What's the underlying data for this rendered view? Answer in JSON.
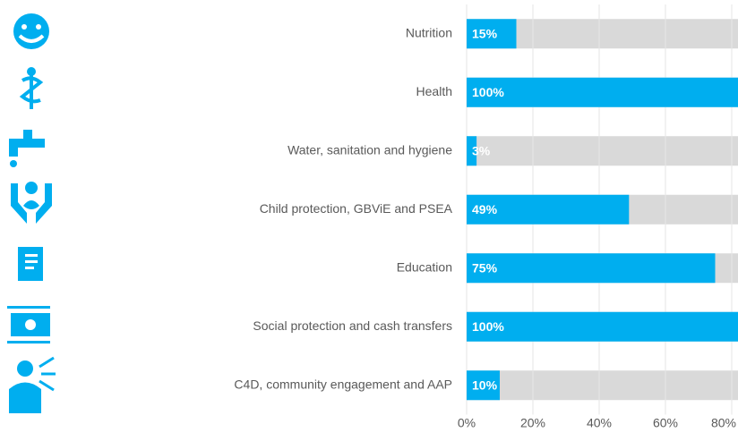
{
  "chart_data": {
    "type": "bar",
    "orientation": "horizontal",
    "categories": [
      "Nutrition",
      "Health",
      "Water, sanitation and hygiene",
      "Child protection, GBViE and PSEA",
      "Education",
      "Social protection and cash transfers",
      "C4D, community engagement and AAP"
    ],
    "values": [
      15,
      100,
      3,
      49,
      75,
      100,
      10
    ],
    "value_labels": [
      "15%",
      "100%",
      "3%",
      "49%",
      "75%",
      "100%",
      "10%"
    ],
    "color": "#00aeef",
    "track_color": "#d9d9d9",
    "xlim": [
      0,
      100
    ],
    "xticks": [
      {
        "value": 0,
        "label": "0%"
      },
      {
        "value": 20,
        "label": "20%"
      },
      {
        "value": 40,
        "label": "40%"
      },
      {
        "value": 60,
        "label": "60%"
      },
      {
        "value": 80,
        "label": "80%"
      }
    ],
    "grid": true
  }
}
